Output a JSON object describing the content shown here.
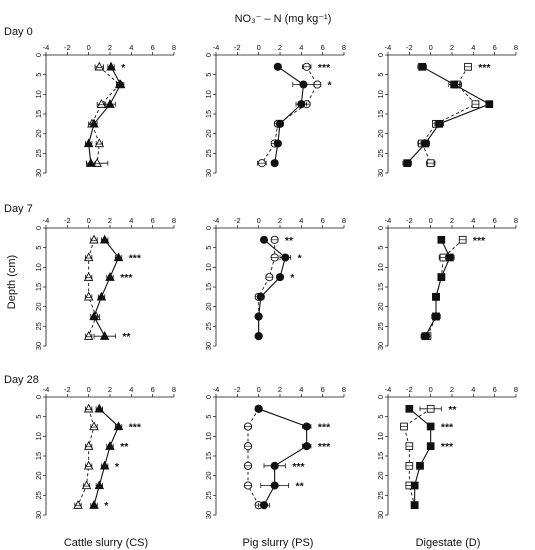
{
  "figure": {
    "top_label": "NO₃⁻ – N (mg kg⁻¹)",
    "y_label": "Depth (cm)",
    "rows": [
      "Day 0",
      "Day 7",
      "Day 28"
    ],
    "columns": [
      "Cattle slurry (CS)",
      "Pig slurry (PS)",
      "Digestate (D)"
    ]
  },
  "chart_data": [
    {
      "type": "line",
      "panel": "Day 0 - Cattle slurry (CS)",
      "xlim": [
        -4,
        8
      ],
      "ylim": [
        0,
        30
      ],
      "x_ticks": [
        -4,
        -2,
        0,
        2,
        4,
        6,
        8
      ],
      "y_ticks": [
        0,
        5,
        10,
        15,
        20,
        25,
        30
      ],
      "marker": "triangle",
      "depth": [
        3,
        7.5,
        12.5,
        17.5,
        22.5,
        27.5
      ],
      "series": [
        {
          "fill": "filled",
          "line": "solid",
          "values": [
            2.1,
            3.0,
            2.0,
            0.5,
            0.0,
            0.2
          ],
          "err": [
            0.3,
            0.3,
            0.5,
            0.3,
            0.3,
            0.4
          ]
        },
        {
          "fill": "open",
          "line": "dashed",
          "values": [
            1.0,
            2.9,
            1.2,
            0.3,
            1.0,
            0.8
          ],
          "err": [
            0.4,
            0.3,
            0.4,
            0.3,
            0.3,
            1.0
          ]
        }
      ],
      "significance": [
        {
          "depth": 3,
          "label": "*"
        }
      ]
    },
    {
      "type": "line",
      "panel": "Day 0 - Pig slurry (PS)",
      "xlim": [
        -4,
        8
      ],
      "ylim": [
        0,
        30
      ],
      "x_ticks": [
        -4,
        -2,
        0,
        2,
        4,
        6,
        8
      ],
      "y_ticks": [
        0,
        5,
        10,
        15,
        20,
        25,
        30
      ],
      "marker": "circle",
      "depth": [
        3,
        7.5,
        12.5,
        17.5,
        22.5,
        27.5
      ],
      "series": [
        {
          "fill": "filled",
          "line": "solid",
          "values": [
            1.8,
            4.2,
            4.0,
            2.0,
            1.8,
            1.5
          ],
          "err": [
            0.3,
            1.0,
            0.5,
            0.3,
            0.3,
            0.3
          ]
        },
        {
          "fill": "open",
          "line": "dashed",
          "values": [
            4.5,
            5.5,
            4.5,
            1.8,
            1.5,
            0.3
          ],
          "err": [
            0.4,
            0.3,
            0.3,
            0.3,
            0.3,
            0.4
          ]
        }
      ],
      "significance": [
        {
          "depth": 3,
          "label": "***"
        },
        {
          "depth": 7.5,
          "label": "*"
        }
      ]
    },
    {
      "type": "line",
      "panel": "Day 0 - Digestate (D)",
      "xlim": [
        -4,
        8
      ],
      "ylim": [
        0,
        30
      ],
      "x_ticks": [
        -4,
        -2,
        0,
        2,
        4,
        6,
        8
      ],
      "y_ticks": [
        0,
        5,
        10,
        15,
        20,
        25,
        30
      ],
      "marker": "square",
      "depth": [
        3,
        7.5,
        12.5,
        17.5,
        22.5,
        27.5
      ],
      "series": [
        {
          "fill": "filled",
          "line": "solid",
          "values": [
            -0.8,
            2.2,
            5.5,
            0.8,
            -0.5,
            -2.2
          ],
          "err": [
            0.4,
            0.5,
            0.3,
            0.4,
            0.4,
            0.4
          ]
        },
        {
          "fill": "open",
          "line": "dashed",
          "values": [
            3.5,
            2.5,
            4.2,
            0.5,
            -0.8,
            0.0
          ],
          "err": [
            0.3,
            0.4,
            0.3,
            0.3,
            0.4,
            0.4
          ]
        }
      ],
      "significance": [
        {
          "depth": 3,
          "label": "***"
        }
      ]
    },
    {
      "type": "line",
      "panel": "Day 7 - Cattle slurry (CS)",
      "xlim": [
        -4,
        8
      ],
      "ylim": [
        0,
        30
      ],
      "x_ticks": [
        -4,
        -2,
        0,
        2,
        4,
        6,
        8
      ],
      "y_ticks": [
        0,
        5,
        10,
        15,
        20,
        25,
        30
      ],
      "marker": "triangle",
      "depth": [
        3,
        7.5,
        12.5,
        17.5,
        22.5,
        27.5
      ],
      "series": [
        {
          "fill": "filled",
          "line": "solid",
          "values": [
            1.5,
            2.8,
            2.0,
            1.2,
            0.5,
            1.5
          ],
          "err": [
            0.3,
            0.3,
            0.3,
            0.3,
            0.3,
            1.0
          ]
        },
        {
          "fill": "open",
          "line": "dashed",
          "values": [
            0.5,
            0.0,
            0.0,
            0.0,
            0.7,
            0.0
          ],
          "err": [
            0.3,
            0.3,
            0.3,
            0.3,
            0.3,
            0.3
          ]
        }
      ],
      "significance": [
        {
          "depth": 7.5,
          "label": "***"
        },
        {
          "depth": 12.5,
          "label": "***"
        },
        {
          "depth": 27.5,
          "label": "**"
        }
      ]
    },
    {
      "type": "line",
      "panel": "Day 7 - Pig slurry (PS)",
      "xlim": [
        -4,
        8
      ],
      "ylim": [
        0,
        30
      ],
      "x_ticks": [
        -4,
        -2,
        0,
        2,
        4,
        6,
        8
      ],
      "y_ticks": [
        0,
        5,
        10,
        15,
        20,
        25,
        30
      ],
      "marker": "circle",
      "depth": [
        3,
        7.5,
        12.5,
        17.5,
        22.5,
        27.5
      ],
      "series": [
        {
          "fill": "filled",
          "line": "solid",
          "values": [
            0.5,
            2.5,
            2.0,
            0.2,
            0.0,
            0.0
          ],
          "err": [
            0.2,
            0.5,
            0.3,
            0.3,
            0.2,
            0.2
          ]
        },
        {
          "fill": "open",
          "line": "dashed",
          "values": [
            1.5,
            1.5,
            1.0,
            0.0,
            0.0,
            0.0
          ],
          "err": [
            0.3,
            0.3,
            0.3,
            0.3,
            0.2,
            0.2
          ]
        }
      ],
      "significance": [
        {
          "depth": 3,
          "label": "**"
        },
        {
          "depth": 7.5,
          "label": "*"
        },
        {
          "depth": 12.5,
          "label": "*"
        }
      ]
    },
    {
      "type": "line",
      "panel": "Day 7 - Digestate (D)",
      "xlim": [
        -4,
        8
      ],
      "ylim": [
        0,
        30
      ],
      "x_ticks": [
        -4,
        -2,
        0,
        2,
        4,
        6,
        8
      ],
      "y_ticks": [
        0,
        5,
        10,
        15,
        20,
        25,
        30
      ],
      "marker": "square",
      "depth": [
        3,
        7.5,
        12.5,
        17.5,
        22.5,
        27.5
      ],
      "series": [
        {
          "fill": "filled",
          "line": "solid",
          "values": [
            1.0,
            1.8,
            1.0,
            0.5,
            0.5,
            -0.5
          ],
          "err": [
            0.3,
            0.4,
            0.3,
            0.3,
            0.3,
            0.4
          ]
        },
        {
          "fill": "open",
          "line": "dashed",
          "values": [
            3.0,
            1.2,
            1.0,
            0.5,
            0.5,
            -0.3
          ],
          "err": [
            0.3,
            0.4,
            0.3,
            0.3,
            0.4,
            0.3
          ]
        }
      ],
      "significance": [
        {
          "depth": 3,
          "label": "***"
        }
      ]
    },
    {
      "type": "line",
      "panel": "Day 28 - Cattle slurry (CS)",
      "xlim": [
        -4,
        8
      ],
      "ylim": [
        0,
        30
      ],
      "x_ticks": [
        -4,
        -2,
        0,
        2,
        4,
        6,
        8
      ],
      "y_ticks": [
        0,
        5,
        10,
        15,
        20,
        25,
        30
      ],
      "marker": "triangle",
      "depth": [
        3,
        7.5,
        12.5,
        17.5,
        22.5,
        27.5
      ],
      "series": [
        {
          "fill": "filled",
          "line": "solid",
          "values": [
            1.0,
            2.8,
            2.0,
            1.5,
            1.0,
            0.5
          ],
          "err": [
            0.3,
            0.3,
            0.3,
            0.3,
            0.3,
            0.3
          ]
        },
        {
          "fill": "open",
          "line": "dashed",
          "values": [
            0.0,
            0.5,
            0.0,
            0.0,
            -0.2,
            -1.0
          ],
          "err": [
            0.3,
            0.3,
            0.3,
            0.3,
            0.3,
            0.3
          ]
        }
      ],
      "significance": [
        {
          "depth": 7.5,
          "label": "***"
        },
        {
          "depth": 12.5,
          "label": "**"
        },
        {
          "depth": 17.5,
          "label": "*"
        },
        {
          "depth": 27.5,
          "label": "*"
        }
      ]
    },
    {
      "type": "line",
      "panel": "Day 28 - Pig slurry (PS)",
      "xlim": [
        -4,
        8
      ],
      "ylim": [
        0,
        30
      ],
      "x_ticks": [
        -4,
        -2,
        0,
        2,
        4,
        6,
        8
      ],
      "y_ticks": [
        0,
        5,
        10,
        15,
        20,
        25,
        30
      ],
      "marker": "circle",
      "depth": [
        3,
        7.5,
        12.5,
        17.5,
        22.5,
        27.5
      ],
      "series": [
        {
          "fill": "filled",
          "line": "solid",
          "values": [
            0.0,
            4.5,
            4.5,
            1.5,
            1.5,
            0.5
          ],
          "err": [
            0.3,
            0.4,
            0.4,
            1.0,
            1.3,
            0.5
          ]
        },
        {
          "fill": "open",
          "line": "dashed",
          "values": [
            0.0,
            -1.0,
            -1.0,
            -1.0,
            -1.0,
            0.0
          ],
          "err": [
            0.3,
            0.3,
            0.3,
            0.3,
            0.3,
            0.3
          ]
        }
      ],
      "significance": [
        {
          "depth": 7.5,
          "label": "***"
        },
        {
          "depth": 12.5,
          "label": "***"
        },
        {
          "depth": 17.5,
          "label": "***"
        },
        {
          "depth": 22.5,
          "label": "**"
        }
      ]
    },
    {
      "type": "line",
      "panel": "Day 28 - Digestate (D)",
      "xlim": [
        -4,
        8
      ],
      "ylim": [
        0,
        30
      ],
      "x_ticks": [
        -4,
        -2,
        0,
        2,
        4,
        6,
        8
      ],
      "y_ticks": [
        0,
        5,
        10,
        15,
        20,
        25,
        30
      ],
      "marker": "square",
      "depth": [
        3,
        7.5,
        12.5,
        17.5,
        22.5,
        27.5
      ],
      "series": [
        {
          "fill": "filled",
          "line": "solid",
          "values": [
            -2.0,
            0.0,
            0.0,
            -1.0,
            -1.5,
            -1.5
          ],
          "err": [
            0.3,
            0.3,
            0.3,
            0.3,
            0.3,
            0.3
          ]
        },
        {
          "fill": "open",
          "line": "dashed",
          "values": [
            0.0,
            -2.5,
            -2.0,
            -2.0,
            -2.0,
            -1.5
          ],
          "err": [
            1.0,
            0.3,
            0.3,
            0.3,
            0.3,
            0.3
          ]
        }
      ],
      "significance": [
        {
          "depth": 3,
          "label": "**"
        },
        {
          "depth": 7.5,
          "label": "***"
        },
        {
          "depth": 12.5,
          "label": "***"
        }
      ]
    }
  ]
}
